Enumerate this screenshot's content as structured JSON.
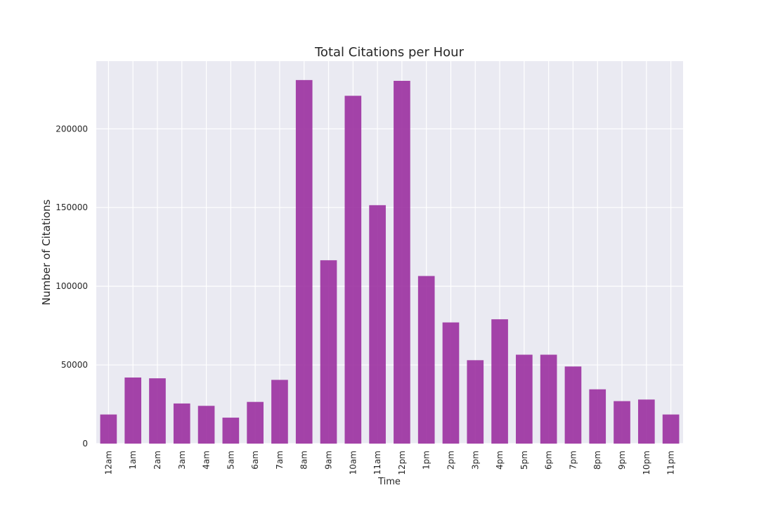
{
  "chart_data": {
    "type": "bar",
    "title": "Total Citations per Hour",
    "xlabel": "Time",
    "ylabel": "Number of Citations",
    "categories": [
      "12am",
      "1am",
      "2am",
      "3am",
      "4am",
      "5am",
      "6am",
      "7am",
      "8am",
      "9am",
      "10am",
      "11am",
      "12pm",
      "1pm",
      "2pm",
      "3pm",
      "4pm",
      "5pm",
      "6pm",
      "7pm",
      "8pm",
      "9pm",
      "10pm",
      "11pm"
    ],
    "values": [
      18500,
      42000,
      41500,
      25500,
      24000,
      16500,
      26500,
      40500,
      231000,
      116500,
      221000,
      151500,
      230500,
      106500,
      77000,
      53000,
      79000,
      56500,
      56500,
      49000,
      34500,
      27000,
      28000,
      18500
    ],
    "yticks": [
      0,
      50000,
      100000,
      150000,
      200000
    ],
    "ytick_labels": [
      "0",
      "50000",
      "100000",
      "150000",
      "200000"
    ],
    "ylim": [
      0,
      243000
    ],
    "grid": true,
    "bar_color": "#9b30a0",
    "background_color": "#eaeaf2",
    "grid_color": "#ffffff"
  }
}
